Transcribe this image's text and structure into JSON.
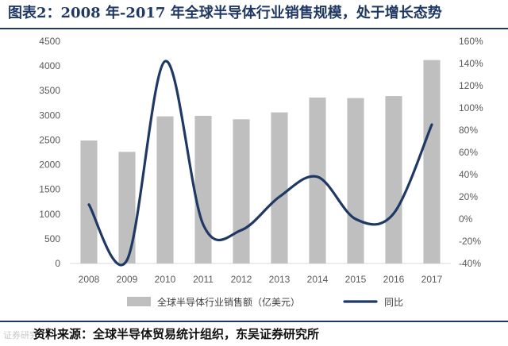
{
  "title": "图表2：2008 年-2017 年全球半导体行业销售规模，处于增长态势",
  "source": "资料来源：全球半导体贸易统计组织，东吴证券研究所",
  "watermark": "证券研究",
  "colors": {
    "bar": "#bfbfbf",
    "line": "#1f3864",
    "rule": "#1f3864",
    "axis": "#d9d9d9"
  },
  "chart_data": {
    "type": "bar",
    "categories": [
      "2008",
      "2009",
      "2010",
      "2011",
      "2012",
      "2013",
      "2014",
      "2015",
      "2016",
      "2017"
    ],
    "series": [
      {
        "name": "全球半导体行业销售额（亿美元）",
        "type": "bar",
        "axis": "left",
        "values": [
          2490,
          2260,
          2980,
          2990,
          2920,
          3060,
          3360,
          3350,
          3390,
          4120
        ]
      },
      {
        "name": "同比",
        "type": "line",
        "axis": "right",
        "unit": "%",
        "values": [
          13,
          -37,
          142,
          -5,
          -10,
          20,
          38,
          0,
          5,
          85
        ]
      }
    ],
    "y_left": {
      "min": 0,
      "max": 4500,
      "step": 500,
      "ticks": [
        "0",
        "500",
        "1000",
        "1500",
        "2000",
        "2500",
        "3000",
        "3500",
        "4000",
        "4500"
      ]
    },
    "y_right": {
      "min": -40,
      "max": 160,
      "step": 20,
      "ticks": [
        "-40%",
        "-20%",
        "0%",
        "20%",
        "40%",
        "60%",
        "80%",
        "100%",
        "120%",
        "140%",
        "160%"
      ]
    },
    "grid": false,
    "legend_position": "bottom"
  }
}
